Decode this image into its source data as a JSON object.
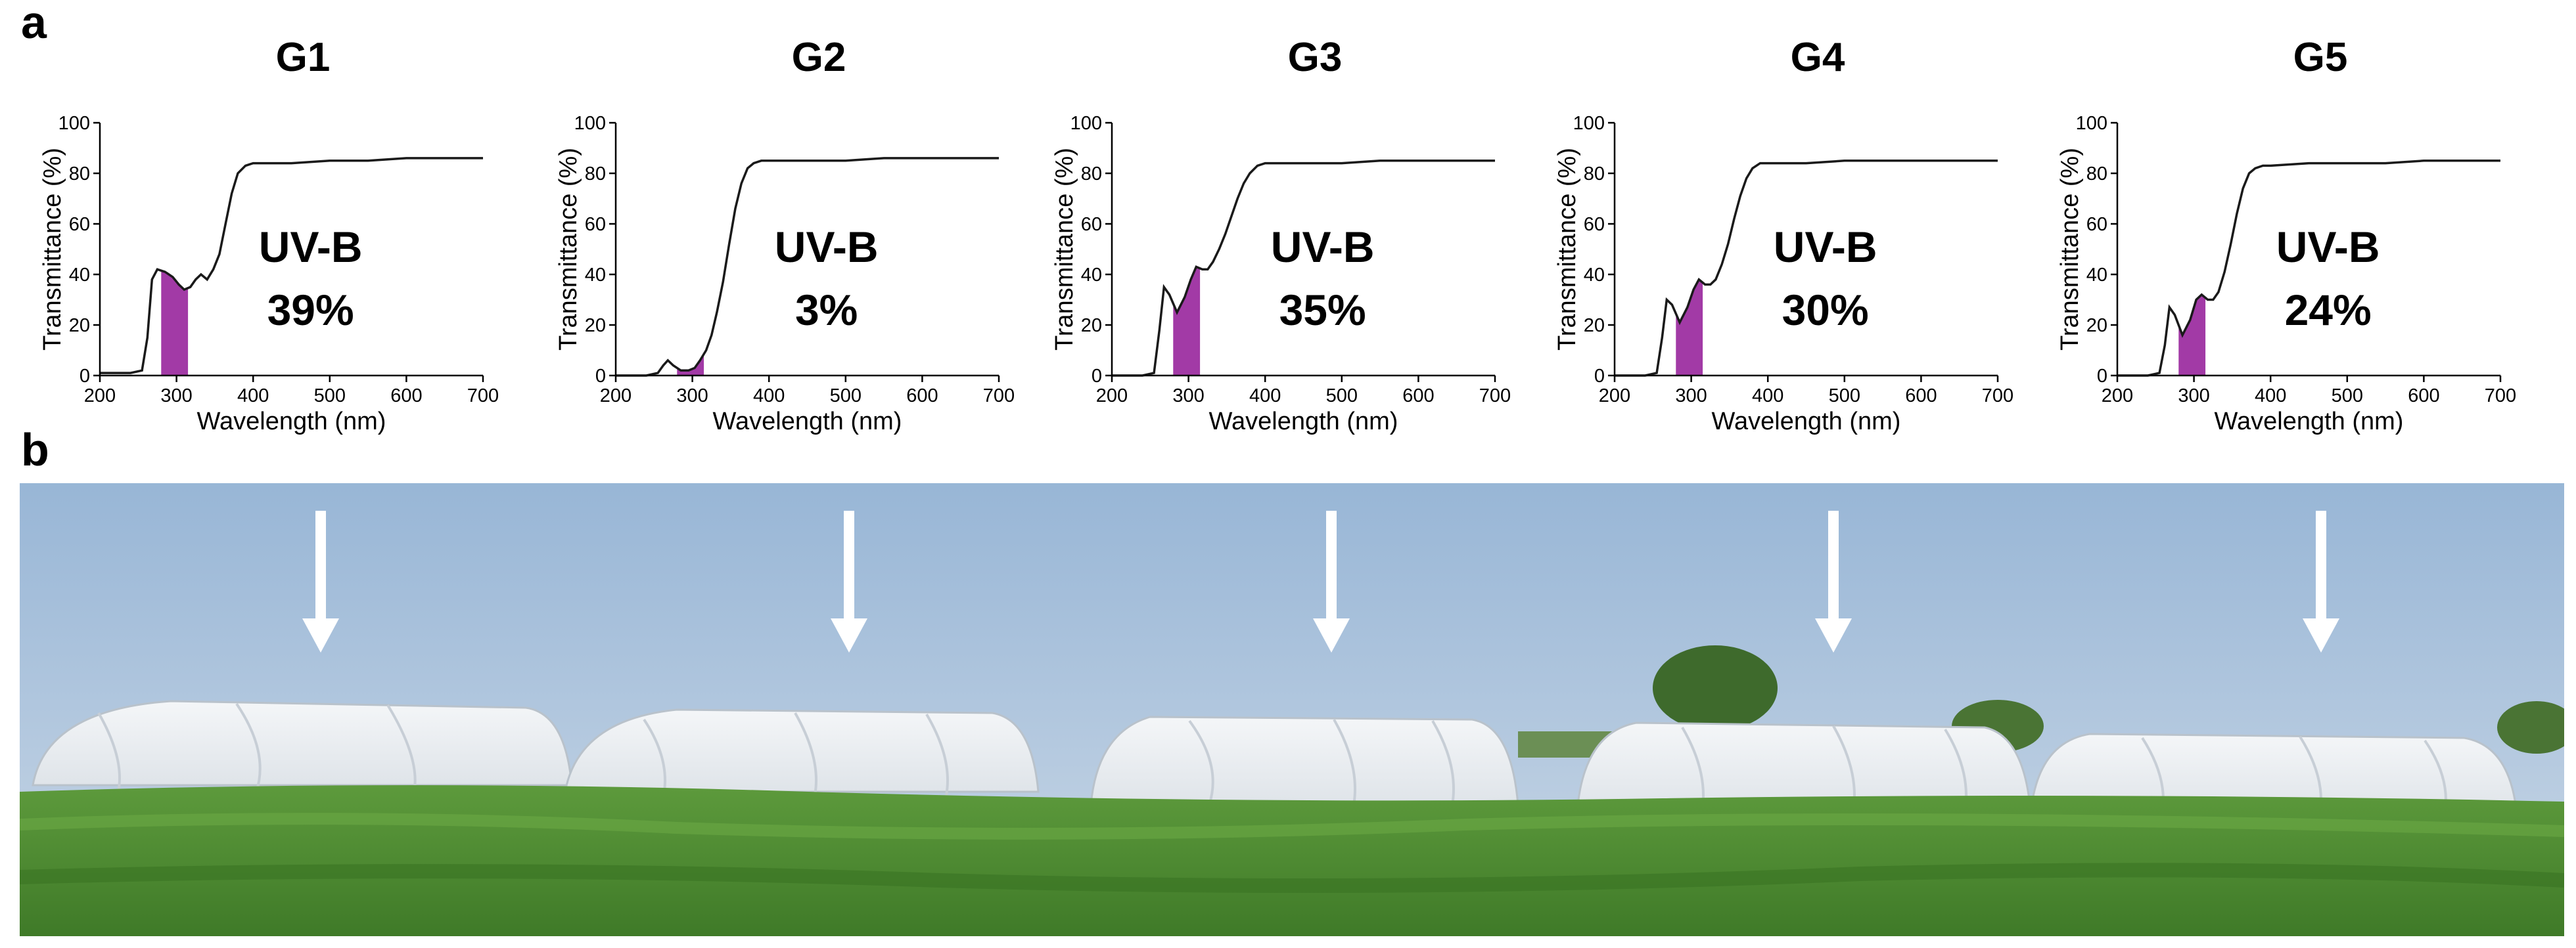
{
  "panel_labels": {
    "a": "a",
    "b": "b"
  },
  "colors": {
    "curve": "#1a1a1a",
    "uvb_fill": "#a23aa6",
    "sky_top": "#9dbad9",
    "sky_bottom": "#c3d3e6",
    "grass": "#4f8a32",
    "greenhouse": "#eef1f3",
    "arrow": "#ffffff"
  },
  "chart_data": [
    {
      "type": "line",
      "title": "G1",
      "xlabel": "Wavelength (nm)",
      "ylabel": "Transmittance (%)",
      "xlim": [
        200,
        700
      ],
      "ylim": [
        0,
        100
      ],
      "xticks": [
        "200",
        "300",
        "400",
        "500",
        "600",
        "700"
      ],
      "yticks": [
        "0",
        "20",
        "40",
        "60",
        "80",
        "100"
      ],
      "annotation": {
        "label": "UV-B",
        "value": "39%"
      },
      "shaded_range_nm": [
        280,
        315
      ],
      "x": [
        200,
        240,
        255,
        262,
        268,
        275,
        285,
        295,
        303,
        310,
        318,
        325,
        332,
        340,
        348,
        356,
        364,
        372,
        380,
        390,
        400,
        450,
        500,
        550,
        600,
        650,
        700
      ],
      "y": [
        1,
        1,
        2,
        15,
        38,
        42,
        41,
        39,
        36,
        34,
        35,
        38,
        40,
        38,
        42,
        48,
        60,
        72,
        80,
        83,
        84,
        84,
        85,
        85,
        86,
        86,
        86
      ]
    },
    {
      "type": "line",
      "title": "G2",
      "xlabel": "Wavelength (nm)",
      "ylabel": "Transmittance (%)",
      "xlim": [
        200,
        700
      ],
      "ylim": [
        0,
        100
      ],
      "xticks": [
        "200",
        "300",
        "400",
        "500",
        "600",
        "700"
      ],
      "yticks": [
        "0",
        "20",
        "40",
        "60",
        "80",
        "100"
      ],
      "annotation": {
        "label": "UV-B",
        "value": "3%"
      },
      "shaded_range_nm": [
        280,
        315
      ],
      "x": [
        200,
        240,
        255,
        262,
        268,
        275,
        285,
        295,
        303,
        310,
        318,
        325,
        332,
        340,
        348,
        356,
        364,
        372,
        380,
        390,
        400,
        450,
        500,
        550,
        600,
        650,
        700
      ],
      "y": [
        0,
        0,
        1,
        4,
        6,
        4,
        2,
        2,
        3,
        6,
        10,
        16,
        25,
        37,
        52,
        66,
        76,
        82,
        84,
        85,
        85,
        85,
        85,
        86,
        86,
        86,
        86
      ]
    },
    {
      "type": "line",
      "title": "G3",
      "xlabel": "Wavelength (nm)",
      "ylabel": "Transmittance (%)",
      "xlim": [
        200,
        700
      ],
      "ylim": [
        0,
        100
      ],
      "xticks": [
        "200",
        "300",
        "400",
        "500",
        "600",
        "700"
      ],
      "yticks": [
        "0",
        "20",
        "40",
        "60",
        "80",
        "100"
      ],
      "annotation": {
        "label": "UV-B",
        "value": "35%"
      },
      "shaded_range_nm": [
        280,
        315
      ],
      "x": [
        200,
        240,
        255,
        262,
        268,
        275,
        285,
        295,
        303,
        310,
        318,
        325,
        332,
        340,
        348,
        356,
        364,
        372,
        380,
        390,
        400,
        450,
        500,
        550,
        600,
        650,
        700
      ],
      "y": [
        0,
        0,
        1,
        18,
        35,
        32,
        25,
        31,
        38,
        43,
        42,
        42,
        45,
        50,
        56,
        63,
        70,
        76,
        80,
        83,
        84,
        84,
        84,
        85,
        85,
        85,
        85
      ]
    },
    {
      "type": "line",
      "title": "G4",
      "xlabel": "Wavelength (nm)",
      "ylabel": "Transmittance (%)",
      "xlim": [
        200,
        700
      ],
      "ylim": [
        0,
        100
      ],
      "xticks": [
        "200",
        "300",
        "400",
        "500",
        "600",
        "700"
      ],
      "yticks": [
        "0",
        "20",
        "40",
        "60",
        "80",
        "100"
      ],
      "annotation": {
        "label": "UV-B",
        "value": "30%"
      },
      "shaded_range_nm": [
        280,
        315
      ],
      "x": [
        200,
        240,
        255,
        262,
        268,
        275,
        285,
        295,
        303,
        310,
        318,
        325,
        332,
        340,
        348,
        356,
        364,
        372,
        380,
        390,
        400,
        450,
        500,
        550,
        600,
        650,
        700
      ],
      "y": [
        0,
        0,
        1,
        15,
        30,
        28,
        21,
        27,
        34,
        38,
        36,
        36,
        38,
        44,
        52,
        62,
        71,
        78,
        82,
        84,
        84,
        84,
        85,
        85,
        85,
        85,
        85
      ]
    },
    {
      "type": "line",
      "title": "G5",
      "xlabel": "Wavelength (nm)",
      "ylabel": "Transmittance (%)",
      "xlim": [
        200,
        700
      ],
      "ylim": [
        0,
        100
      ],
      "xticks": [
        "200",
        "300",
        "400",
        "500",
        "600",
        "700"
      ],
      "yticks": [
        "0",
        "20",
        "40",
        "60",
        "80",
        "100"
      ],
      "annotation": {
        "label": "UV-B",
        "value": "24%"
      },
      "shaded_range_nm": [
        280,
        315
      ],
      "x": [
        200,
        240,
        255,
        262,
        268,
        275,
        285,
        295,
        303,
        310,
        318,
        325,
        332,
        340,
        348,
        356,
        364,
        372,
        380,
        390,
        400,
        450,
        500,
        550,
        600,
        650,
        700
      ],
      "y": [
        0,
        0,
        1,
        12,
        27,
        24,
        16,
        22,
        30,
        32,
        30,
        30,
        33,
        41,
        52,
        64,
        74,
        80,
        82,
        83,
        83,
        84,
        84,
        84,
        85,
        85,
        85
      ]
    }
  ]
}
